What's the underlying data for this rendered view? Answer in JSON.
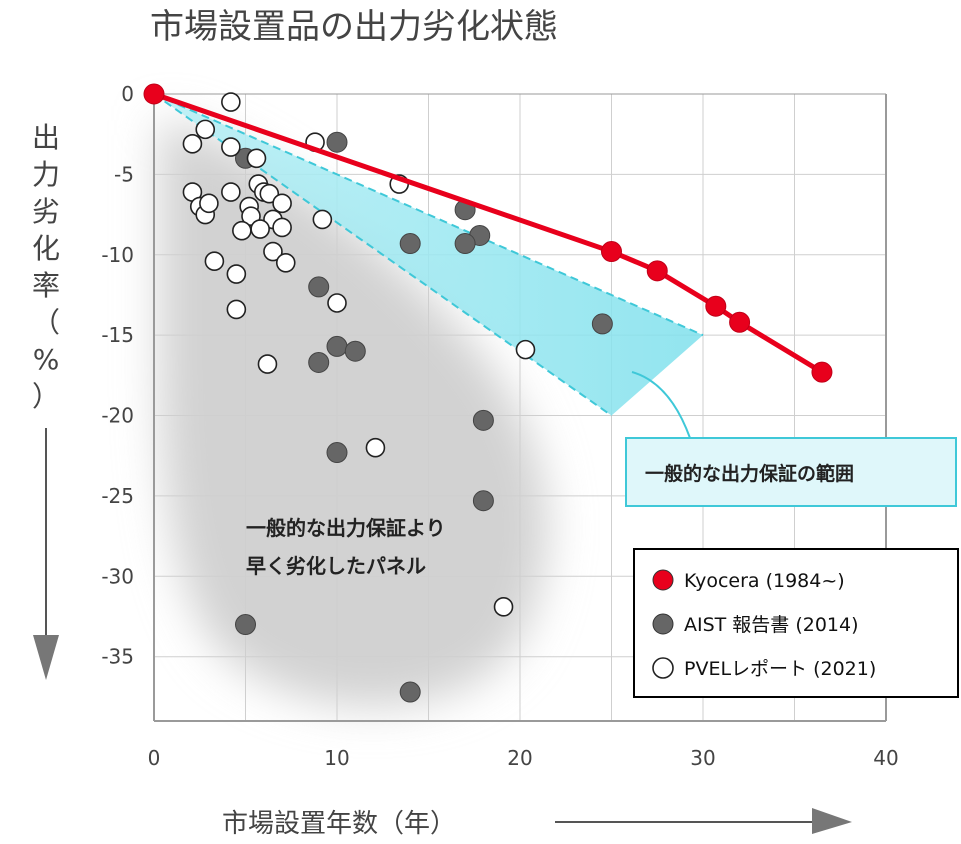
{
  "chart_data": {
    "type": "scatter",
    "title": "市場設置品の出力劣化状態",
    "xlabel": "市場設置年数（年）",
    "ylabel_chars": [
      "出",
      "力",
      "劣",
      "化",
      "率",
      "（",
      "%",
      "）"
    ],
    "xlim": [
      0,
      40
    ],
    "ylim": [
      -39,
      0
    ],
    "x_ticks": [
      0,
      10,
      20,
      30,
      40
    ],
    "y_ticks": [
      0,
      -5,
      -10,
      -15,
      -20,
      -25,
      -30,
      -35
    ],
    "grid": true,
    "legend_position": "bottom-right",
    "series": [
      {
        "name": "Kyocera (1984~)",
        "color": "#e8001c",
        "marker": "filled-circle",
        "connected": true,
        "points": [
          [
            0,
            0
          ],
          [
            25,
            -9.8
          ],
          [
            27.5,
            -11
          ],
          [
            30.7,
            -13.2
          ],
          [
            32,
            -14.2
          ],
          [
            36.5,
            -17.3
          ]
        ]
      },
      {
        "name": "AIST 報告書 (2014)",
        "color": "#666666",
        "marker": "filled-circle",
        "connected": false,
        "points": [
          [
            5,
            -4
          ],
          [
            10,
            -3
          ],
          [
            17,
            -7.2
          ],
          [
            17.8,
            -8.8
          ],
          [
            17,
            -9.3
          ],
          [
            14,
            -9.3
          ],
          [
            9,
            -12
          ],
          [
            9,
            -16.7
          ],
          [
            10,
            -15.7
          ],
          [
            11,
            -16
          ],
          [
            24.5,
            -14.3
          ],
          [
            18,
            -20.3
          ],
          [
            10,
            -22.3
          ],
          [
            18,
            -25.3
          ],
          [
            5,
            -33
          ],
          [
            14,
            -37.2
          ]
        ]
      },
      {
        "name": "PVELレポート (2021)",
        "color": "#ffffff",
        "marker": "open-circle",
        "connected": false,
        "points": [
          [
            4.2,
            -0.5
          ],
          [
            2.8,
            -2.2
          ],
          [
            2.1,
            -3.1
          ],
          [
            4.2,
            -3.3
          ],
          [
            5.6,
            -4
          ],
          [
            8.8,
            -3
          ],
          [
            13.4,
            -5.6
          ],
          [
            5.7,
            -5.6
          ],
          [
            6,
            -6.1
          ],
          [
            6.3,
            -6.2
          ],
          [
            2.1,
            -6.1
          ],
          [
            4.2,
            -6.1
          ],
          [
            7,
            -6.8
          ],
          [
            2.5,
            -7
          ],
          [
            2.8,
            -7.5
          ],
          [
            5.2,
            -7
          ],
          [
            3,
            -6.8
          ],
          [
            5.3,
            -7.6
          ],
          [
            6.5,
            -7.8
          ],
          [
            7,
            -8.3
          ],
          [
            5.8,
            -8.4
          ],
          [
            4.8,
            -8.5
          ],
          [
            9.2,
            -7.8
          ],
          [
            6.5,
            -9.8
          ],
          [
            7.2,
            -10.5
          ],
          [
            3.3,
            -10.4
          ],
          [
            4.5,
            -11.2
          ],
          [
            4.5,
            -13.4
          ],
          [
            10,
            -13
          ],
          [
            6.2,
            -16.8
          ],
          [
            20.3,
            -15.9
          ],
          [
            12.1,
            -22
          ],
          [
            19.1,
            -31.9
          ]
        ]
      }
    ],
    "bands": [
      {
        "label": "一般的な出力保証の範囲",
        "upper_edge": [
          [
            0,
            0
          ],
          [
            30,
            -15
          ]
        ],
        "lower_edge": [
          [
            0,
            0
          ],
          [
            25,
            -20
          ]
        ]
      }
    ],
    "annotations": [
      {
        "lines": [
          "一般的な出力保証より",
          "早く劣化したパネル"
        ]
      }
    ]
  },
  "colors": {
    "kyocera_red": "#e8001c",
    "aist_gray": "#666666",
    "band_fill": "#8fe4ef",
    "band_border": "#3fc8d8",
    "region_gray": "#d0d0d0",
    "grid": "#cfcfcf",
    "axis": "#9a9a9a"
  }
}
